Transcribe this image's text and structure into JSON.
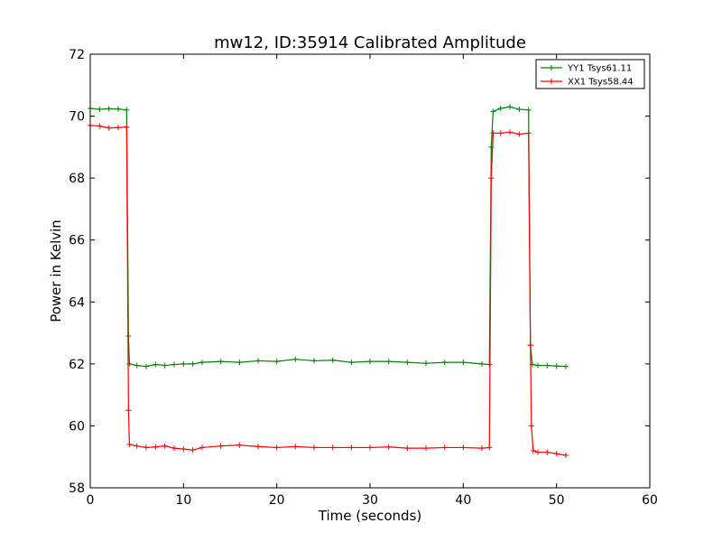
{
  "chart_data": {
    "type": "line",
    "title": "mw12, ID:35914 Calibrated Amplitude",
    "xlabel": "Time (seconds)",
    "ylabel": "Power in Kelvin",
    "xlim": [
      0,
      60
    ],
    "ylim": [
      58,
      72
    ],
    "xticks": [
      0,
      10,
      20,
      30,
      40,
      50,
      60
    ],
    "yticks": [
      58,
      60,
      62,
      64,
      66,
      68,
      70,
      72
    ],
    "grid": false,
    "legend": "top-right",
    "series": [
      {
        "name": "YY1 Tsys61.11",
        "color": "#008000",
        "marker": "+",
        "points": [
          [
            0.0,
            70.25
          ],
          [
            1.0,
            70.22
          ],
          [
            2.0,
            70.24
          ],
          [
            3.0,
            70.23
          ],
          [
            3.9,
            70.2
          ],
          [
            4.1,
            62.9
          ],
          [
            4.2,
            62.0
          ],
          [
            5.0,
            61.95
          ],
          [
            6.0,
            61.92
          ],
          [
            7.0,
            61.98
          ],
          [
            8.0,
            61.95
          ],
          [
            9.0,
            61.98
          ],
          [
            10.0,
            62.0
          ],
          [
            11.0,
            62.0
          ],
          [
            12.0,
            62.05
          ],
          [
            14.0,
            62.08
          ],
          [
            16.0,
            62.05
          ],
          [
            18.0,
            62.1
          ],
          [
            20.0,
            62.08
          ],
          [
            22.0,
            62.15
          ],
          [
            24.0,
            62.1
          ],
          [
            26.0,
            62.12
          ],
          [
            28.0,
            62.05
          ],
          [
            30.0,
            62.08
          ],
          [
            32.0,
            62.08
          ],
          [
            34.0,
            62.05
          ],
          [
            36.0,
            62.02
          ],
          [
            38.0,
            62.05
          ],
          [
            40.0,
            62.05
          ],
          [
            42.0,
            62.0
          ],
          [
            42.8,
            61.98
          ],
          [
            43.0,
            69.0
          ],
          [
            43.2,
            70.15
          ],
          [
            44.0,
            70.25
          ],
          [
            45.0,
            70.3
          ],
          [
            46.0,
            70.22
          ],
          [
            47.0,
            70.2
          ],
          [
            47.2,
            62.6
          ],
          [
            47.4,
            61.98
          ],
          [
            48.0,
            61.95
          ],
          [
            49.0,
            61.95
          ],
          [
            50.0,
            61.93
          ],
          [
            51.0,
            61.92
          ]
        ]
      },
      {
        "name": "XX1 Tsys58.44",
        "color": "#ff0000",
        "marker": "+",
        "points": [
          [
            0.0,
            69.7
          ],
          [
            1.0,
            69.68
          ],
          [
            2.0,
            69.62
          ],
          [
            3.0,
            69.63
          ],
          [
            3.9,
            69.65
          ],
          [
            4.1,
            60.5
          ],
          [
            4.2,
            59.4
          ],
          [
            5.0,
            59.35
          ],
          [
            6.0,
            59.3
          ],
          [
            7.0,
            59.32
          ],
          [
            8.0,
            59.35
          ],
          [
            9.0,
            59.28
          ],
          [
            10.0,
            59.25
          ],
          [
            11.0,
            59.22
          ],
          [
            12.0,
            59.3
          ],
          [
            14.0,
            59.35
          ],
          [
            16.0,
            59.38
          ],
          [
            18.0,
            59.33
          ],
          [
            20.0,
            59.3
          ],
          [
            22.0,
            59.33
          ],
          [
            24.0,
            59.3
          ],
          [
            26.0,
            59.3
          ],
          [
            28.0,
            59.3
          ],
          [
            30.0,
            59.3
          ],
          [
            32.0,
            59.32
          ],
          [
            34.0,
            59.28
          ],
          [
            36.0,
            59.28
          ],
          [
            38.0,
            59.3
          ],
          [
            40.0,
            59.3
          ],
          [
            42.0,
            59.28
          ],
          [
            42.8,
            59.3
          ],
          [
            43.0,
            68.0
          ],
          [
            43.2,
            69.45
          ],
          [
            44.0,
            69.45
          ],
          [
            45.0,
            69.48
          ],
          [
            46.0,
            69.42
          ],
          [
            47.0,
            69.45
          ],
          [
            47.2,
            62.6
          ],
          [
            47.3,
            60.0
          ],
          [
            47.5,
            59.2
          ],
          [
            48.0,
            59.15
          ],
          [
            49.0,
            59.15
          ],
          [
            50.0,
            59.1
          ],
          [
            51.0,
            59.05
          ]
        ]
      }
    ]
  }
}
